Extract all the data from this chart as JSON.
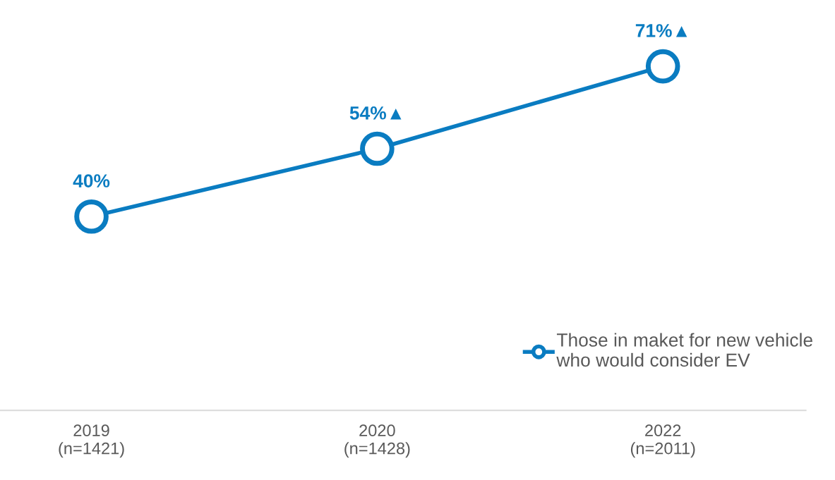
{
  "chart_data": {
    "type": "line",
    "categories": [
      "2019\n(n=1421)",
      "2020\n(n=1428)",
      "2022\n(n=2011)"
    ],
    "series": [
      {
        "name": "Those in maket for new vehicle\nwho would consider EV",
        "color": "#0a7cc1",
        "values": [
          40,
          54,
          71
        ],
        "value_labels": [
          "40%",
          "54%▲",
          "71%▲"
        ]
      }
    ],
    "marker": "circle",
    "line_style": "solid",
    "legend": "bottom right",
    "grid": false
  }
}
